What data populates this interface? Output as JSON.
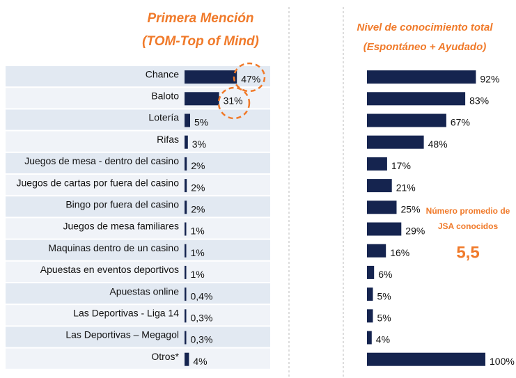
{
  "chart_data": [
    {
      "type": "bar",
      "orientation": "horizontal",
      "title": [
        "Primera Mención",
        "(TOM-Top of Mind)"
      ],
      "categories": [
        "Chance",
        "Baloto",
        "Lotería",
        "Rifas",
        "Juegos de mesa - dentro del casino",
        "Juegos de cartas por fuera del casino",
        "Bingo por fuera del casino",
        "Juegos de mesa familiares",
        "Maquinas dentro de un casino",
        "Apuestas en eventos deportivos",
        "Apuestas online",
        "Las Deportivas - Liga 14",
        "Las Deportivas – Megagol",
        "Otros*"
      ],
      "values": [
        47,
        31,
        5,
        3,
        2,
        2,
        2,
        1,
        1,
        1,
        0.4,
        0.3,
        0.3,
        4
      ],
      "value_labels": [
        "47%",
        "31%",
        "5%",
        "3%",
        "2%",
        "2%",
        "2%",
        "1%",
        "1%",
        "1%",
        "0,4%",
        "0,3%",
        "0,3%",
        "4%"
      ],
      "color": "#15244f"
    },
    {
      "type": "bar",
      "orientation": "horizontal",
      "title": [
        "Nivel de conocimiento total",
        "(Espontáneo +  Ayudado)"
      ],
      "values": [
        92,
        83,
        67,
        48,
        17,
        21,
        25,
        29,
        16,
        6,
        5,
        5,
        4,
        100
      ],
      "value_labels": [
        "92%",
        "83%",
        "67%",
        "48%",
        "17%",
        "21%",
        "25%",
        "29%",
        "16%",
        "6%",
        "5%",
        "5%",
        "4%",
        "100%"
      ],
      "color": "#15244f",
      "annotations": [
        "Número promedio de",
        "JSA conocidos",
        "5,5"
      ]
    }
  ]
}
